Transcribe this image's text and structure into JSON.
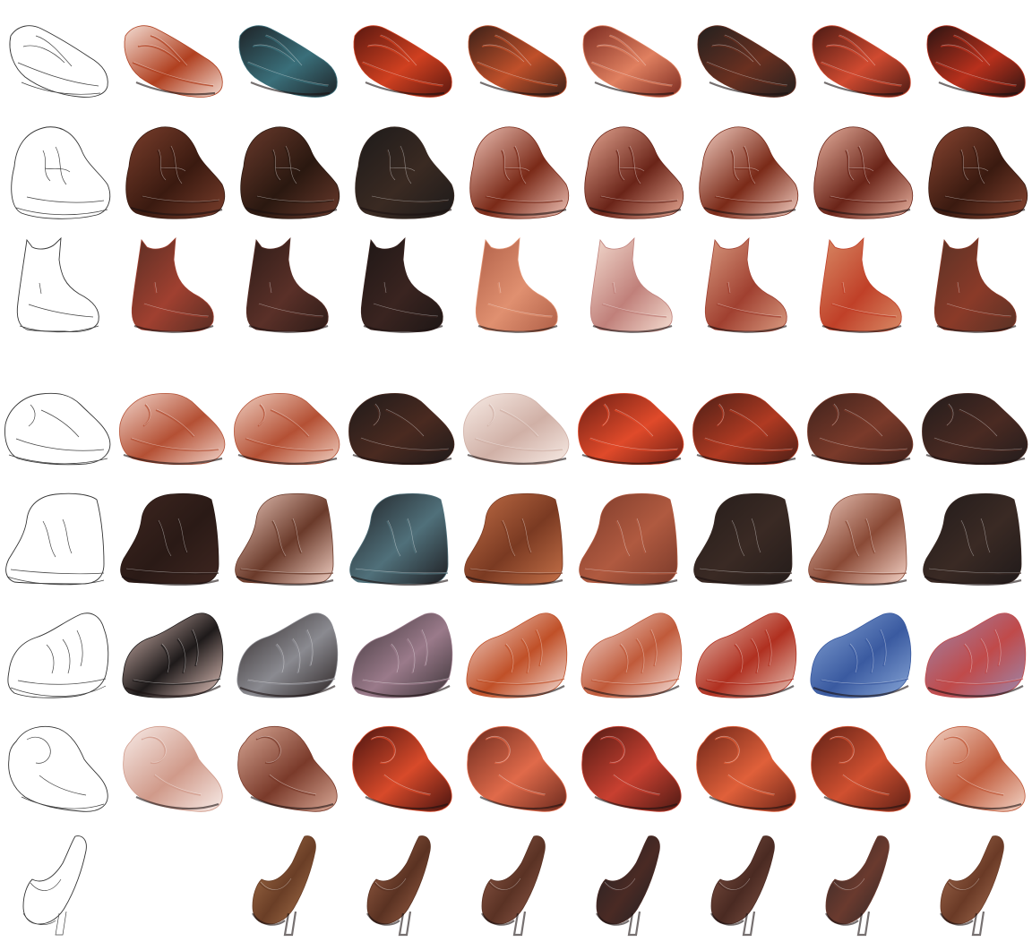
{
  "figure": {
    "description_free": true,
    "layout": "grid",
    "rows": [
      {
        "kind": "low-shoe",
        "cells": [
          {
            "type": "sketch"
          },
          {
            "type": "render",
            "color": "#f3dcd2",
            "accent": "#b04020"
          },
          {
            "type": "render",
            "color": "#1e2327",
            "accent": "#3a6f7a"
          },
          {
            "type": "render",
            "color": "#5a1810",
            "accent": "#d04020"
          },
          {
            "type": "render",
            "color": "#3a2018",
            "accent": "#c0502a"
          },
          {
            "type": "render",
            "color": "#7a2a20",
            "accent": "#e08060"
          },
          {
            "type": "render",
            "color": "#22201f",
            "accent": "#6a3020"
          },
          {
            "type": "render",
            "color": "#4a1a14",
            "accent": "#d04a30"
          },
          {
            "type": "render",
            "color": "#2a1412",
            "accent": "#b8301c"
          }
        ]
      },
      {
        "kind": "sneaker",
        "cells": [
          {
            "type": "sketch"
          },
          {
            "type": "render",
            "color": "#7a3e2c",
            "accent": "#3a1a10"
          },
          {
            "type": "render",
            "color": "#6a3a2c",
            "accent": "#2a1810"
          },
          {
            "type": "render",
            "color": "#1c1a1a",
            "accent": "#3a2a22"
          },
          {
            "type": "render",
            "color": "#f0c4b8",
            "accent": "#7a2a18"
          },
          {
            "type": "render",
            "color": "#e6a894",
            "accent": "#6a2418"
          },
          {
            "type": "render",
            "color": "#f4d0c4",
            "accent": "#7a2a18"
          },
          {
            "type": "render",
            "color": "#eab4a2",
            "accent": "#6a2418"
          },
          {
            "type": "render",
            "color": "#8a4632",
            "accent": "#3a1a10"
          }
        ]
      },
      {
        "kind": "chelsea-boot",
        "cells": [
          {
            "type": "sketch"
          },
          {
            "type": "render",
            "color": "#5a2e24",
            "accent": "#a04030"
          },
          {
            "type": "render",
            "color": "#2e1c18",
            "accent": "#5a3028"
          },
          {
            "type": "render",
            "color": "#1e1716",
            "accent": "#3a2420"
          },
          {
            "type": "render",
            "color": "#b06048",
            "accent": "#e09070"
          },
          {
            "type": "render",
            "color": "#f4dcd0",
            "accent": "#c0807a"
          },
          {
            "type": "render",
            "color": "#d89a80",
            "accent": "#a04030"
          },
          {
            "type": "render",
            "color": "#d88a66",
            "accent": "#c04028"
          },
          {
            "type": "render",
            "color": "#5a3226",
            "accent": "#8a3a28"
          }
        ]
      },
      {
        "kind": "sandal",
        "cells": [
          {
            "type": "sketch"
          },
          {
            "type": "render",
            "color": "#f2d6cc",
            "accent": "#b45034"
          },
          {
            "type": "render",
            "color": "#f0d0c2",
            "accent": "#b45034"
          },
          {
            "type": "render",
            "color": "#1e1a1a",
            "accent": "#4a2a20"
          },
          {
            "type": "render",
            "color": "#f8ece6",
            "accent": "#d0b0a6"
          },
          {
            "type": "render",
            "color": "#6a1e14",
            "accent": "#e04a2a"
          },
          {
            "type": "render",
            "color": "#4a1e16",
            "accent": "#b03a22"
          },
          {
            "type": "render",
            "color": "#3e221c",
            "accent": "#7a3a2a"
          },
          {
            "type": "render",
            "color": "#221c1c",
            "accent": "#4a2a22"
          }
        ]
      },
      {
        "kind": "ankle-boot",
        "cells": [
          {
            "type": "sketch"
          },
          {
            "type": "render",
            "color": "#3e2620",
            "accent": "#2a1a16"
          },
          {
            "type": "render",
            "color": "#f0cec2",
            "accent": "#6a3a2a"
          },
          {
            "type": "render",
            "color": "#1e1e22",
            "accent": "#50707a"
          },
          {
            "type": "render",
            "color": "#c47048",
            "accent": "#7a3a22"
          },
          {
            "type": "render",
            "color": "#7a3a2a",
            "accent": "#b05a40"
          },
          {
            "type": "render",
            "color": "#241c1a",
            "accent": "#3a2a24"
          },
          {
            "type": "render",
            "color": "#f4d2c6",
            "accent": "#8a4a36"
          },
          {
            "type": "render",
            "color": "#201a1a",
            "accent": "#3a2a24"
          }
        ]
      },
      {
        "kind": "running-shoe",
        "cells": [
          {
            "type": "sketch"
          },
          {
            "type": "render",
            "color": "#e8c8c0",
            "accent": "#1e1a1a"
          },
          {
            "type": "render",
            "color": "#2a2222",
            "accent": "#8a8a90"
          },
          {
            "type": "render",
            "color": "#3a3236",
            "accent": "#9a7a8a"
          },
          {
            "type": "render",
            "color": "#f4e0da",
            "accent": "#c05028"
          },
          {
            "type": "render",
            "color": "#f6e4e0",
            "accent": "#c05a3a"
          },
          {
            "type": "render",
            "color": "#e8c8bc",
            "accent": "#b03020"
          },
          {
            "type": "render",
            "color": "#8aa8d8",
            "accent": "#3a5aa0"
          },
          {
            "type": "render",
            "color": "#9a8ab0",
            "accent": "#c04a4a"
          }
        ]
      },
      {
        "kind": "clog",
        "cells": [
          {
            "type": "sketch"
          },
          {
            "type": "render",
            "color": "#f8ece8",
            "accent": "#d09a8a"
          },
          {
            "type": "render",
            "color": "#d8a896",
            "accent": "#7a3a2a"
          },
          {
            "type": "render",
            "color": "#4a1410",
            "accent": "#d84a2a"
          },
          {
            "type": "render",
            "color": "#6a2a1e",
            "accent": "#e06a4a"
          },
          {
            "type": "render",
            "color": "#4e1a14",
            "accent": "#c84030"
          },
          {
            "type": "render",
            "color": "#6a2418",
            "accent": "#e0603a"
          },
          {
            "type": "render",
            "color": "#5e2016",
            "accent": "#d05030"
          },
          {
            "type": "render",
            "color": "#f2d4c6",
            "accent": "#c05a3a"
          }
        ]
      },
      {
        "kind": "high-heel",
        "cells": [
          {
            "type": "sketch"
          },
          {
            "type": "blank"
          },
          {
            "type": "render",
            "color": "#b07a52",
            "accent": "#6a3e26"
          },
          {
            "type": "render",
            "color": "#a86a4e",
            "accent": "#5a3222"
          },
          {
            "type": "render",
            "color": "#9a6250",
            "accent": "#5a3224"
          },
          {
            "type": "render",
            "color": "#1c2024",
            "accent": "#4a2a24"
          },
          {
            "type": "render",
            "color": "#8a5a4a",
            "accent": "#4a2a22"
          },
          {
            "type": "render",
            "color": "#2a2628",
            "accent": "#6a3a2e"
          },
          {
            "type": "render",
            "color": "#b0785a",
            "accent": "#6a3a26"
          }
        ]
      }
    ]
  }
}
